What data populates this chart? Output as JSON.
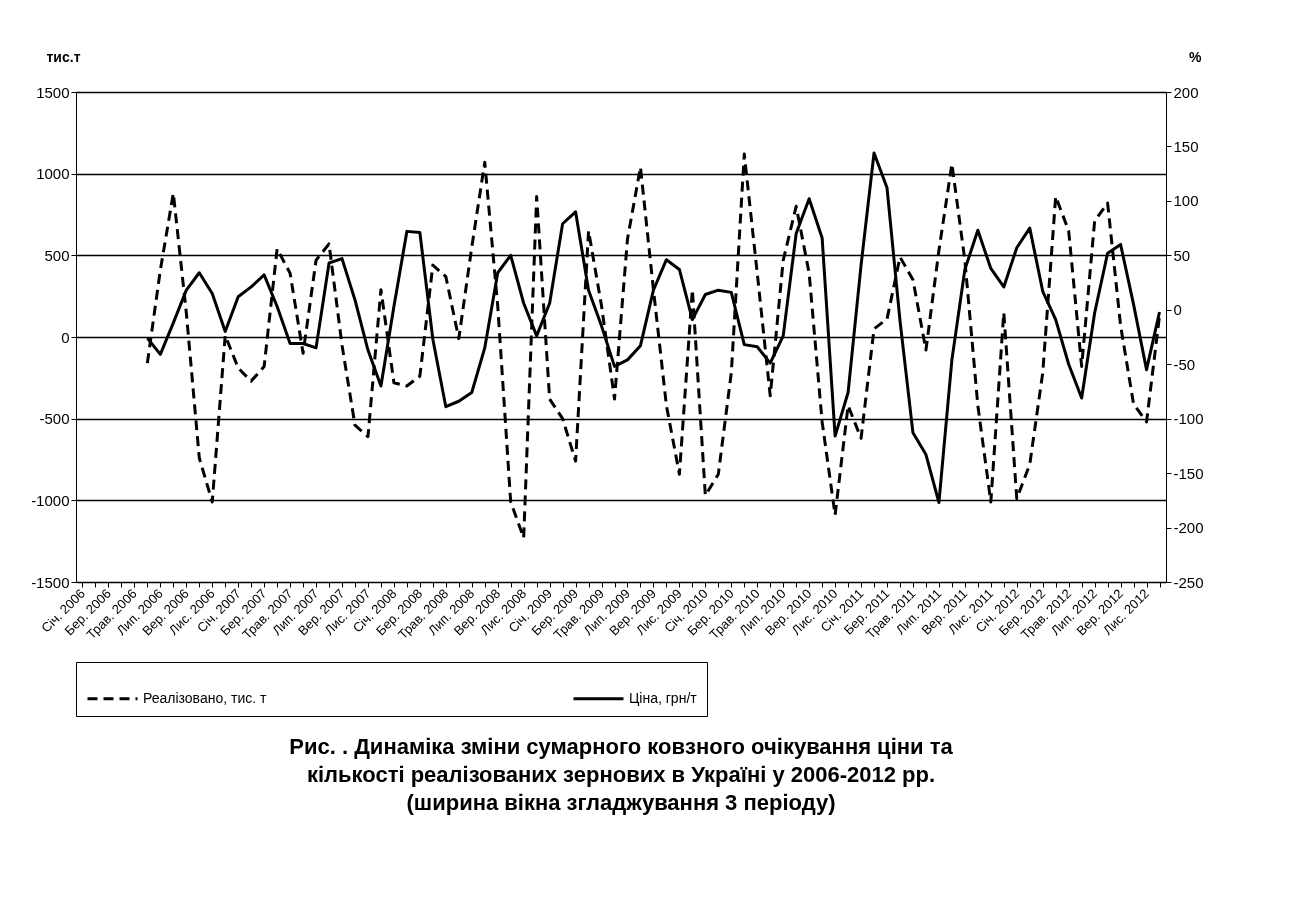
{
  "chart_data": {
    "type": "line",
    "title": "Рис. .  Динаміка зміни сумарного ковзного очікування ціни та кількості реалізованих зернових  в Україні у 2006-2012 рр. (ширина вікна згладжування 3 періоду)",
    "ylabel": "тис.т",
    "y2label": "%",
    "categories": [
      "Січ. 2006",
      null,
      "Бер. 2006",
      null,
      "Трав. 2006",
      null,
      "Лип. 2006",
      null,
      "Вер. 2006",
      null,
      "Лис. 2006",
      null,
      "Січ. 2007",
      null,
      "Бер. 2007",
      null,
      "Трав. 2007",
      null,
      "Лип. 2007",
      null,
      "Вер. 2007",
      null,
      "Лис. 2007",
      null,
      "Січ. 2008",
      null,
      "Бер. 2008",
      null,
      "Трав. 2008",
      null,
      "Лип. 2008",
      null,
      "Вер. 2008",
      null,
      "Лис. 2008",
      null,
      "Січ. 2009",
      null,
      "Бер. 2009",
      null,
      "Трав. 2009",
      null,
      "Лип. 2009",
      null,
      "Вер. 2009",
      null,
      "Лис. 2009",
      null,
      "Січ. 2010",
      null,
      "Бер. 2010",
      null,
      "Трав. 2010",
      null,
      "Лип. 2010",
      null,
      "Вер. 2010",
      null,
      "Лис. 2010",
      null,
      "Січ. 2011",
      null,
      "Бер. 2011",
      null,
      "Трав. 2011",
      null,
      "Лип. 2011",
      null,
      "Вер. 2011",
      null,
      "Лис. 2011",
      null,
      "Січ. 2012",
      null,
      "Бер. 2012",
      null,
      "Трав. 2012",
      null,
      "Лип. 2012",
      null,
      "Вер. 2012",
      null,
      "Лис. 2012",
      null
    ],
    "series": [
      {
        "name": "Реалізовано, тис. т",
        "color": "#000000",
        "line_style": "dashed",
        "values": [
          null,
          null,
          null,
          null,
          null,
          -160,
          410,
          880,
          150,
          -740,
          -1010,
          10,
          -190,
          -270,
          -180,
          540,
          390,
          -100,
          470,
          570,
          -50,
          -540,
          -610,
          290,
          -280,
          -300,
          -240,
          440,
          370,
          -10,
          550,
          1070,
          190,
          -1010,
          -1230,
          860,
          -380,
          -500,
          -760,
          650,
          190,
          -380,
          600,
          1040,
          290,
          -420,
          -840,
          290,
          -970,
          -840,
          -220,
          1120,
          390,
          -360,
          470,
          800,
          390,
          -520,
          -1090,
          -420,
          -620,
          50,
          110,
          490,
          350,
          -80,
          530,
          1060,
          470,
          -420,
          -1010,
          150,
          -990,
          -780,
          -220,
          860,
          650,
          -180,
          710,
          820,
          70,
          -410,
          -520,
          130
        ]
      },
      {
        "name": "Ціна, грн/т",
        "color": "#000000",
        "line_style": "solid",
        "axis": "y2",
        "values": [
          null,
          null,
          null,
          null,
          null,
          -26,
          -41,
          -12,
          18,
          34,
          15,
          -20,
          12,
          21,
          32,
          3,
          -31,
          -31,
          -35,
          43,
          47,
          9,
          -37,
          -70,
          3,
          72,
          71,
          -27,
          -89,
          -84,
          -76,
          -35,
          34,
          50,
          6,
          -24,
          6,
          79,
          90,
          18,
          -15,
          -52,
          -46,
          -33,
          18,
          46,
          37,
          -9,
          14,
          18,
          16,
          -32,
          -34,
          -49,
          -24,
          70,
          102,
          66,
          -116,
          -76,
          41,
          144,
          112,
          -10,
          -113,
          -133,
          -177,
          -46,
          37,
          73,
          38,
          21,
          57,
          75,
          17,
          -9,
          -50,
          -81,
          -3,
          52,
          60,
          5,
          -55,
          -2
        ]
      }
    ],
    "ylim": [
      -1500,
      1500
    ],
    "yticks": [
      -1500,
      -1000,
      -500,
      0,
      500,
      1000,
      1500
    ],
    "y2lim": [
      -250,
      200
    ],
    "y2ticks": [
      -250,
      -200,
      -150,
      -100,
      -50,
      0,
      50,
      100,
      150,
      200
    ],
    "grid": "y",
    "legend": "bottom"
  }
}
